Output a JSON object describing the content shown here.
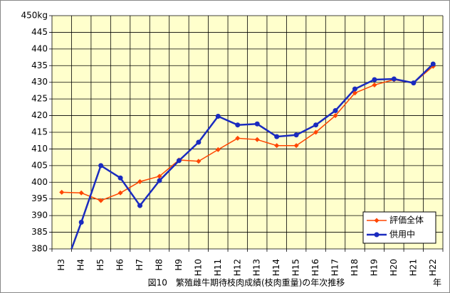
{
  "chart_data": {
    "type": "line",
    "caption": "図10　繁殖雌牛期待枝肉成績(枝肉重量)の年次推移",
    "x_label": "年",
    "categories": [
      "H3",
      "H4",
      "H5",
      "H6",
      "H7",
      "H8",
      "H9",
      "H10",
      "H11",
      "H12",
      "H13",
      "H14",
      "H15",
      "H16",
      "H17",
      "H18",
      "H19",
      "H20",
      "H21",
      "H22"
    ],
    "series": [
      {
        "name": "評価全体",
        "color": "#ff4500",
        "marker": "diamond",
        "values": [
          397,
          396.8,
          394.5,
          396.8,
          400.2,
          401.8,
          406.7,
          406.3,
          409.8,
          413.2,
          412.8,
          411,
          411,
          415,
          420,
          426.8,
          429.2,
          430.8,
          429.8,
          434.8
        ]
      },
      {
        "name": "供用中",
        "color": "#1a2bbf",
        "marker": "circle",
        "values": [
          372,
          388,
          405,
          401.3,
          393,
          400.5,
          406.5,
          412,
          419.8,
          417.2,
          417.5,
          413.7,
          414.2,
          417.2,
          421.5,
          428,
          430.8,
          431,
          429.8,
          435.5
        ]
      }
    ],
    "ylim": [
      380,
      450
    ],
    "yticks": [
      380,
      385,
      390,
      395,
      400,
      405,
      410,
      415,
      420,
      425,
      430,
      435,
      440,
      445,
      {
        "value": 450,
        "label": "450kg"
      }
    ],
    "grid": true,
    "plot_background": "#ffffcc",
    "legend_position": "lower right"
  }
}
